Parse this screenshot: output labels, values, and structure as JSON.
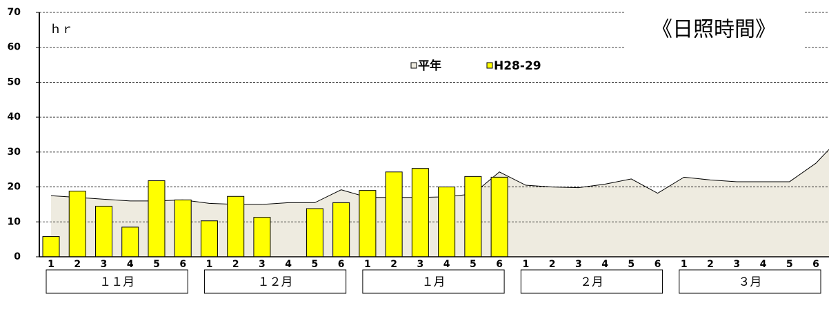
{
  "chart_data": {
    "type": "bar",
    "title": "《日照時間》",
    "y_label": "ｈｒ",
    "categories": [
      "1",
      "2",
      "3",
      "4",
      "5",
      "6",
      "1",
      "2",
      "3",
      "4",
      "5",
      "6",
      "1",
      "2",
      "3",
      "4",
      "5",
      "6",
      "1",
      "2",
      "3",
      "4",
      "5",
      "6",
      "1",
      "2",
      "3",
      "4",
      "5",
      "6"
    ],
    "groups": [
      "１１月",
      "１２月",
      "１月",
      "２月",
      "３月"
    ],
    "series": [
      {
        "name": "平年",
        "type": "area",
        "color": "#eeebe0",
        "values": [
          17.5,
          17,
          16.5,
          16,
          16,
          16.3,
          15.3,
          15,
          15,
          15.5,
          15.5,
          19.2,
          17,
          17,
          17,
          17.2,
          18,
          24.3,
          20.5,
          20,
          19.8,
          20.8,
          22.3,
          18.2,
          22.8,
          22,
          21.5,
          21.5,
          21.5,
          26.8
        ]
      },
      {
        "name": "H28-29",
        "type": "bar",
        "color": "#ffff00",
        "values": [
          5.8,
          18.8,
          14.5,
          8.5,
          21.8,
          16.3,
          10.3,
          17.3,
          11.3,
          null,
          13.8,
          15.5,
          19,
          24.3,
          25.3,
          20,
          23,
          22.8,
          null,
          null,
          null,
          null,
          null,
          null,
          null,
          null,
          null,
          null,
          null,
          null
        ]
      }
    ],
    "ylim": [
      0,
      70
    ],
    "yticks": [
      0,
      10,
      20,
      30,
      40,
      50,
      60,
      70
    ],
    "grid": true
  }
}
